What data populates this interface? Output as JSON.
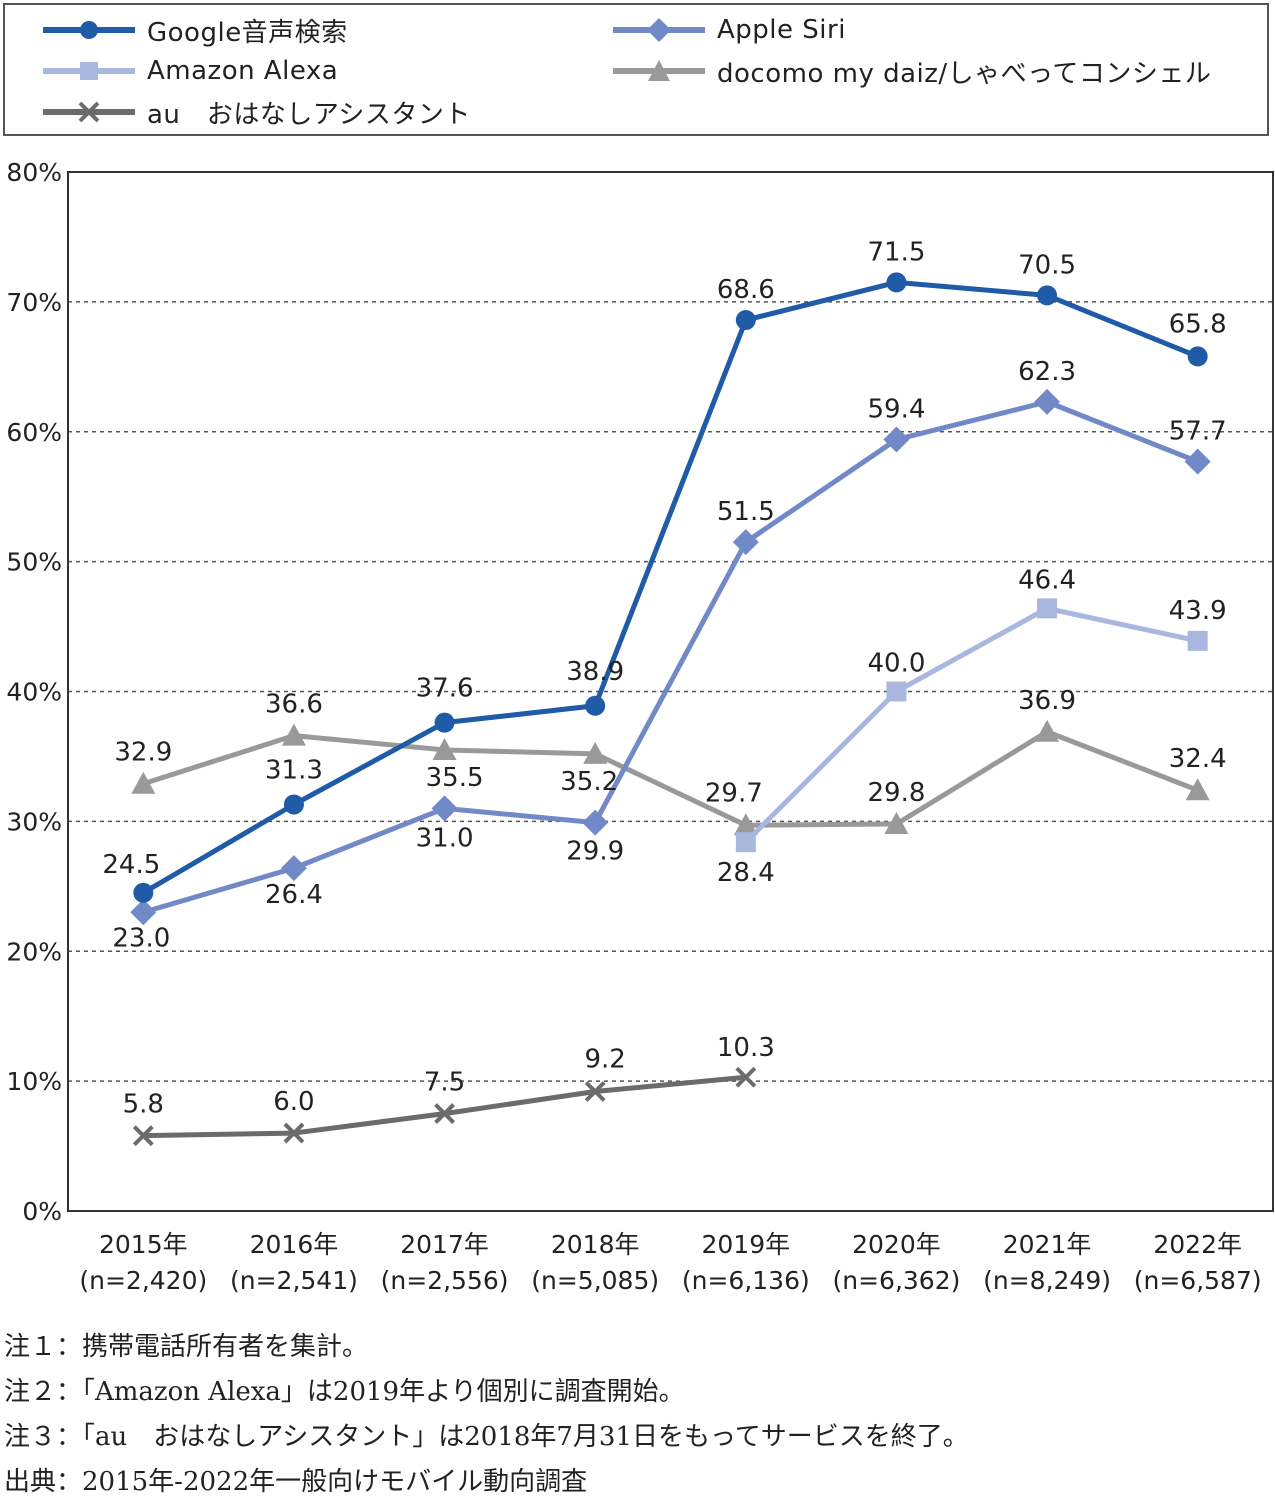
{
  "legend": {
    "items": [
      {
        "label": "Google音声検索",
        "color": "#1f5ba6",
        "marker": "circle"
      },
      {
        "label": "Apple Siri",
        "color": "#7289c7",
        "marker": "diamond"
      },
      {
        "label": "Amazon Alexa",
        "color": "#a9b7df",
        "marker": "square"
      },
      {
        "label": "docomo my daiz/しゃべってコンシェル",
        "color": "#999999",
        "marker": "triangle"
      },
      {
        "label": "au　おはなしアシスタント",
        "color": "#6b6b6b",
        "marker": "cross"
      }
    ]
  },
  "chart_data": {
    "type": "line",
    "x": [
      {
        "year": "2015年",
        "n": "(n=2,420)"
      },
      {
        "year": "2016年",
        "n": "(n=2,541)"
      },
      {
        "year": "2017年",
        "n": "(n=2,556)"
      },
      {
        "year": "2018年",
        "n": "(n=5,085)"
      },
      {
        "year": "2019年",
        "n": "(n=6,136)"
      },
      {
        "year": "2020年",
        "n": "(n=6,362)"
      },
      {
        "year": "2021年",
        "n": "(n=8,249)"
      },
      {
        "year": "2022年",
        "n": "(n=6,587)"
      }
    ],
    "ylim": [
      0,
      80
    ],
    "yticks": [
      "0%",
      "10%",
      "20%",
      "30%",
      "40%",
      "50%",
      "60%",
      "70%",
      "80%"
    ],
    "grid": true,
    "series": [
      {
        "name": "Google音声検索",
        "color": "#1f5ba6",
        "marker": "circle",
        "values": [
          24.5,
          31.3,
          37.6,
          38.9,
          68.6,
          71.5,
          70.5,
          65.8
        ],
        "labels": [
          "24.5",
          "31.3",
          "37.6",
          "38.9",
          "68.6",
          "71.5",
          "70.5",
          "65.8"
        ]
      },
      {
        "name": "Apple Siri",
        "color": "#7289c7",
        "marker": "diamond",
        "values": [
          23.0,
          26.4,
          31.0,
          29.9,
          51.5,
          59.4,
          62.3,
          57.7
        ],
        "labels": [
          "23.0",
          "26.4",
          "31.0",
          "29.9",
          "51.5",
          "59.4",
          "62.3",
          "57.7"
        ]
      },
      {
        "name": "Amazon Alexa",
        "color": "#a9b7df",
        "marker": "square",
        "values": [
          null,
          null,
          null,
          null,
          28.4,
          40.0,
          46.4,
          43.9
        ],
        "labels": [
          null,
          null,
          null,
          null,
          "28.4",
          "40.0",
          "46.4",
          "43.9"
        ]
      },
      {
        "name": "docomo my daiz/しゃべってコンシェル",
        "color": "#999999",
        "marker": "triangle",
        "values": [
          32.9,
          36.6,
          35.5,
          35.2,
          29.7,
          29.8,
          36.9,
          32.4
        ],
        "labels": [
          "32.9",
          "36.6",
          "35.5",
          "35.2",
          "29.7",
          "29.8",
          "36.9",
          "32.4"
        ]
      },
      {
        "name": "au　おはなしアシスタント",
        "color": "#6b6b6b",
        "marker": "cross",
        "values": [
          5.8,
          6.0,
          7.5,
          9.2,
          10.3,
          null,
          null,
          null
        ],
        "labels": [
          "5.8",
          "6.0",
          "7.5",
          "9.2",
          "10.3",
          null,
          null,
          null
        ]
      }
    ]
  },
  "notes": [
    "注１：携帯電話所有者を集計。",
    "注２：「Amazon Alexa」は2019年より個別に調査開始。",
    "注３：「au　おはなしアシスタント」は2018年7月31日をもってサービスを終了。",
    "出典：2015年-2022年一般向けモバイル動向調査"
  ]
}
